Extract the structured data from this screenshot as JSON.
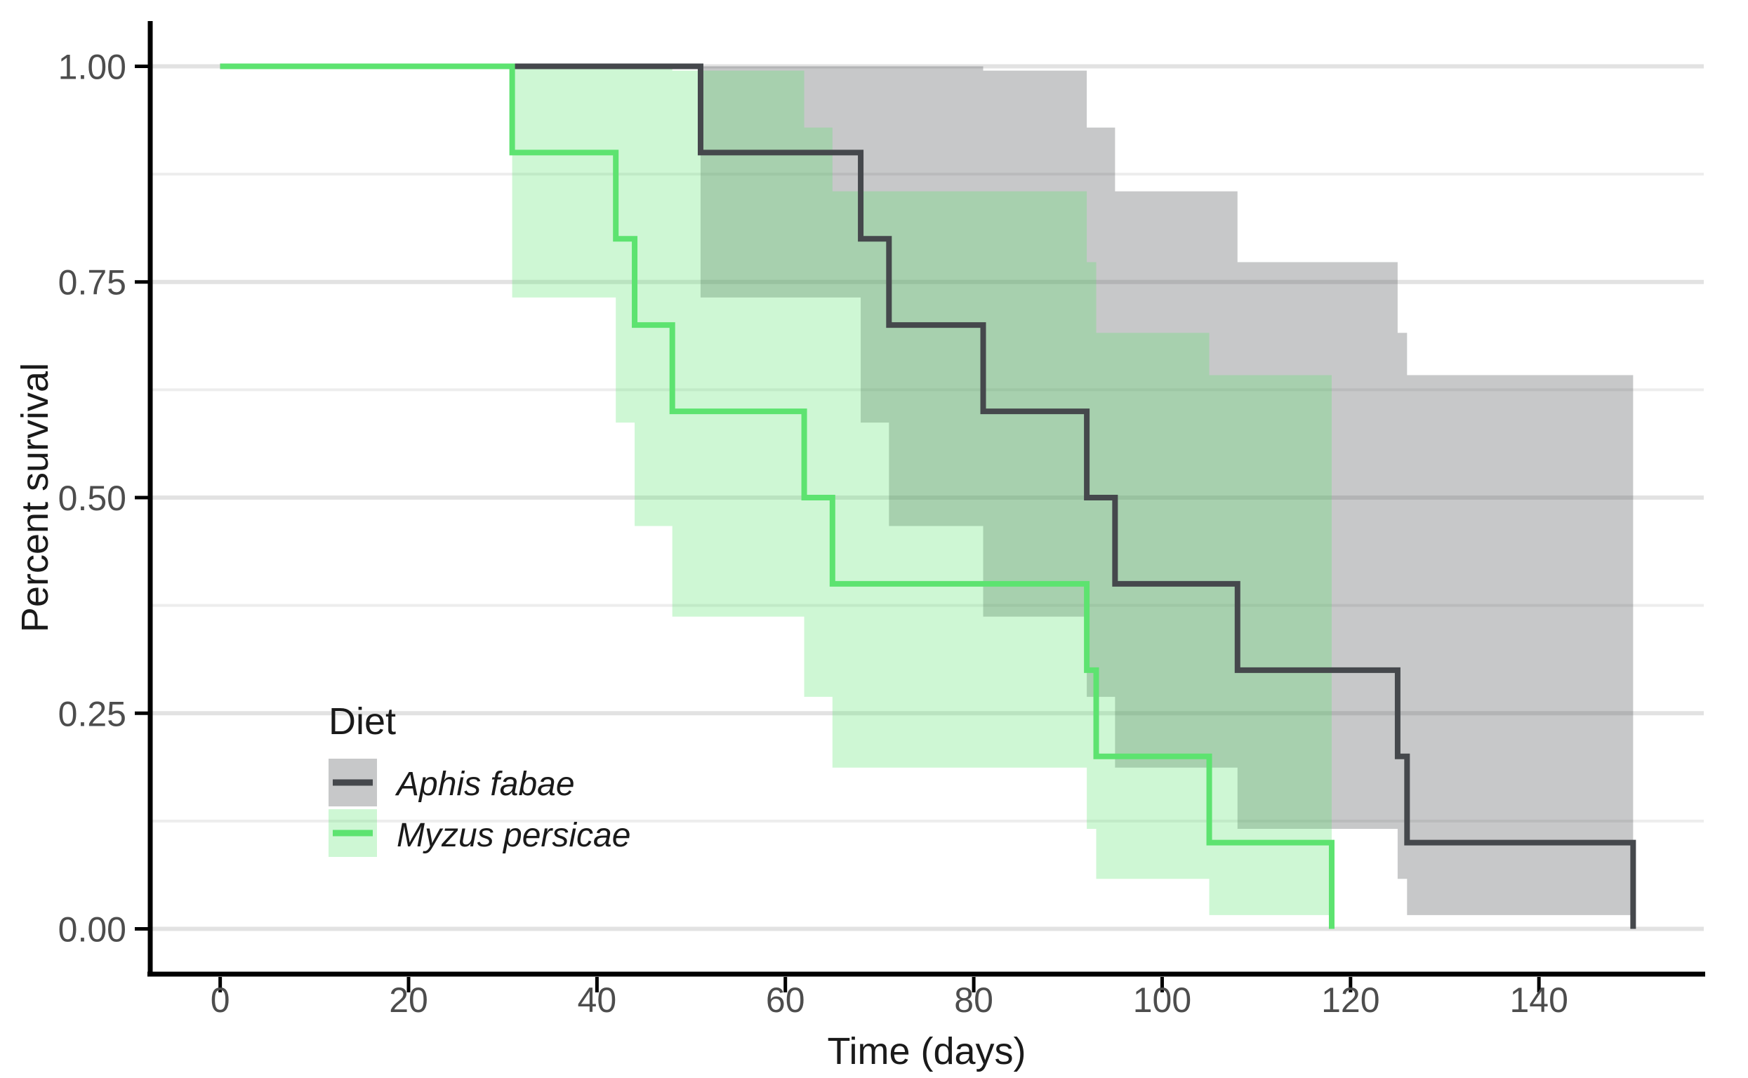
{
  "chart_data": {
    "type": "line",
    "subtype": "kaplan-meier-survival-steps",
    "title": "",
    "xlabel": "Time (days)",
    "ylabel": "Percent survival",
    "xlim": [
      -7.5,
      157.5
    ],
    "ylim": [
      -0.05,
      1.05
    ],
    "x_ticks": [
      0,
      20,
      40,
      60,
      80,
      100,
      120,
      140
    ],
    "y_ticks": [
      {
        "v": 1.0,
        "label": "1.00"
      },
      {
        "v": 0.75,
        "label": "0.75"
      },
      {
        "v": 0.5,
        "label": "0.50"
      },
      {
        "v": 0.25,
        "label": "0.25"
      },
      {
        "v": 0.0,
        "label": "0.00"
      }
    ],
    "y_minor_gridlines": [
      0.875,
      0.625,
      0.375,
      0.125
    ],
    "grid": "horizontal-only",
    "ci_opacity": 0.3,
    "legend": {
      "title": "Diet",
      "position": "inside-bottom-left",
      "entries": [
        {
          "label": "Aphis fabae",
          "line_color": "#45484C"
        },
        {
          "label": "Myzus persicae",
          "line_color": "#5DE370"
        }
      ]
    },
    "series": [
      {
        "name": "Aphis fabae",
        "color": "#45484C",
        "steps": [
          [
            0,
            1.0
          ],
          [
            51,
            0.9
          ],
          [
            68,
            0.8
          ],
          [
            71,
            0.7
          ],
          [
            81,
            0.6
          ],
          [
            92,
            0.5
          ],
          [
            95,
            0.4
          ],
          [
            108,
            0.3
          ],
          [
            125,
            0.2
          ],
          [
            126,
            0.1
          ],
          [
            150,
            0.0
          ]
        ],
        "ci_upper": [
          [
            51,
            1.0
          ],
          [
            81,
            0.995
          ],
          [
            92,
            0.929
          ],
          [
            95,
            0.855
          ],
          [
            108,
            0.773
          ],
          [
            125,
            0.691
          ],
          [
            126,
            0.642
          ]
        ],
        "ci_lower": [
          [
            51,
            0.732
          ],
          [
            68,
            0.587
          ],
          [
            71,
            0.467
          ],
          [
            81,
            0.362
          ],
          [
            92,
            0.269
          ],
          [
            95,
            0.187
          ],
          [
            108,
            0.116
          ],
          [
            125,
            0.058
          ],
          [
            126,
            0.016
          ]
        ],
        "ci_end_time": 150
      },
      {
        "name": "Myzus persicae",
        "color": "#5DE370",
        "steps": [
          [
            0,
            1.0
          ],
          [
            31,
            0.9
          ],
          [
            42,
            0.8
          ],
          [
            44,
            0.7
          ],
          [
            48,
            0.6
          ],
          [
            62,
            0.5
          ],
          [
            65,
            0.4
          ],
          [
            92,
            0.3
          ],
          [
            93,
            0.2
          ],
          [
            105,
            0.1
          ],
          [
            118,
            0.0
          ]
        ],
        "ci_upper": [
          [
            31,
            1.0
          ],
          [
            48,
            0.995
          ],
          [
            62,
            0.929
          ],
          [
            65,
            0.855
          ],
          [
            92,
            0.773
          ],
          [
            93,
            0.691
          ],
          [
            105,
            0.642
          ]
        ],
        "ci_lower": [
          [
            31,
            0.732
          ],
          [
            42,
            0.587
          ],
          [
            44,
            0.467
          ],
          [
            48,
            0.362
          ],
          [
            62,
            0.269
          ],
          [
            65,
            0.187
          ],
          [
            92,
            0.116
          ],
          [
            93,
            0.058
          ],
          [
            105,
            0.016
          ]
        ],
        "ci_end_time": 118
      }
    ],
    "colors": {
      "axis_line": "#000000",
      "tick_label": "#4D4D4D",
      "axis_title": "#1A1A1A",
      "grid_major": "#E2E2E2",
      "grid_minor": "#EDEDED",
      "background": "#FFFFFF"
    }
  }
}
